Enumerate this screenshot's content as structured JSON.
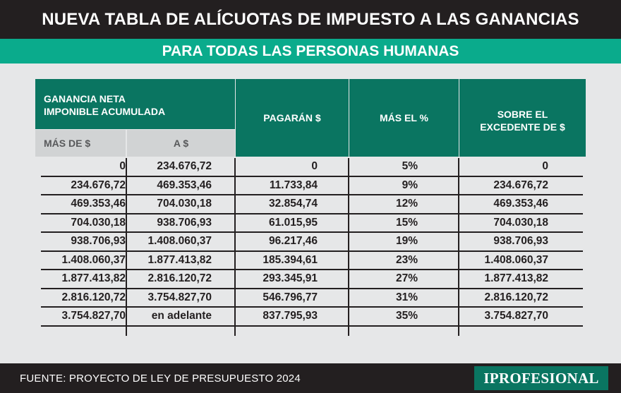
{
  "title": "NUEVA TABLA DE ALÍCUOTAS DE IMPUESTO A LAS GANANCIAS",
  "subtitle": "PARA TODAS LAS PERSONAS HUMANAS",
  "headers": {
    "ganancia_line1": "GANANCIA NETA",
    "ganancia_line2": "IMPONIBLE ACUMULADA",
    "mas_de": "MÁS DE $",
    "a": "A $",
    "pagaran": "PAGARÁN $",
    "mas_el": "MÁS EL %",
    "sobre_line1": "SOBRE EL",
    "sobre_line2": "EXCEDENTE DE $"
  },
  "rows": [
    [
      "0",
      "234.676,72",
      "0",
      "5%",
      "0"
    ],
    [
      "234.676,72",
      "469.353,46",
      "11.733,84",
      "9%",
      "234.676,72"
    ],
    [
      "469.353,46",
      "704.030,18",
      "32.854,74",
      "12%",
      "469.353,46"
    ],
    [
      "704.030,18",
      "938.706,93",
      "61.015,95",
      "15%",
      "704.030,18"
    ],
    [
      "938.706,93",
      "1.408.060,37",
      "96.217,46",
      "19%",
      "938.706,93"
    ],
    [
      "1.408.060,37",
      "1.877.413,82",
      "185.394,61",
      "23%",
      "1.408.060,37"
    ],
    [
      "1.877.413,82",
      "2.816.120,72",
      "293.345,91",
      "27%",
      "1.877.413,82"
    ],
    [
      "2.816.120,72",
      "3.754.827,70",
      "546.796,77",
      "31%",
      "2.816.120,72"
    ],
    [
      "3.754.827,70",
      "en adelante",
      "837.795,93",
      "35%",
      "3.754.827,70"
    ]
  ],
  "footer": {
    "source": "FUENTE: PROYECTO DE LEY DE PRESUPUESTO 2024",
    "brand": "IPROFESIONAL"
  },
  "colors": {
    "dark": "#231f20",
    "accent": "#0aab8c",
    "header_green": "#0a7561",
    "panel": "#e6e7e8",
    "subheader": "#d1d3d4"
  }
}
